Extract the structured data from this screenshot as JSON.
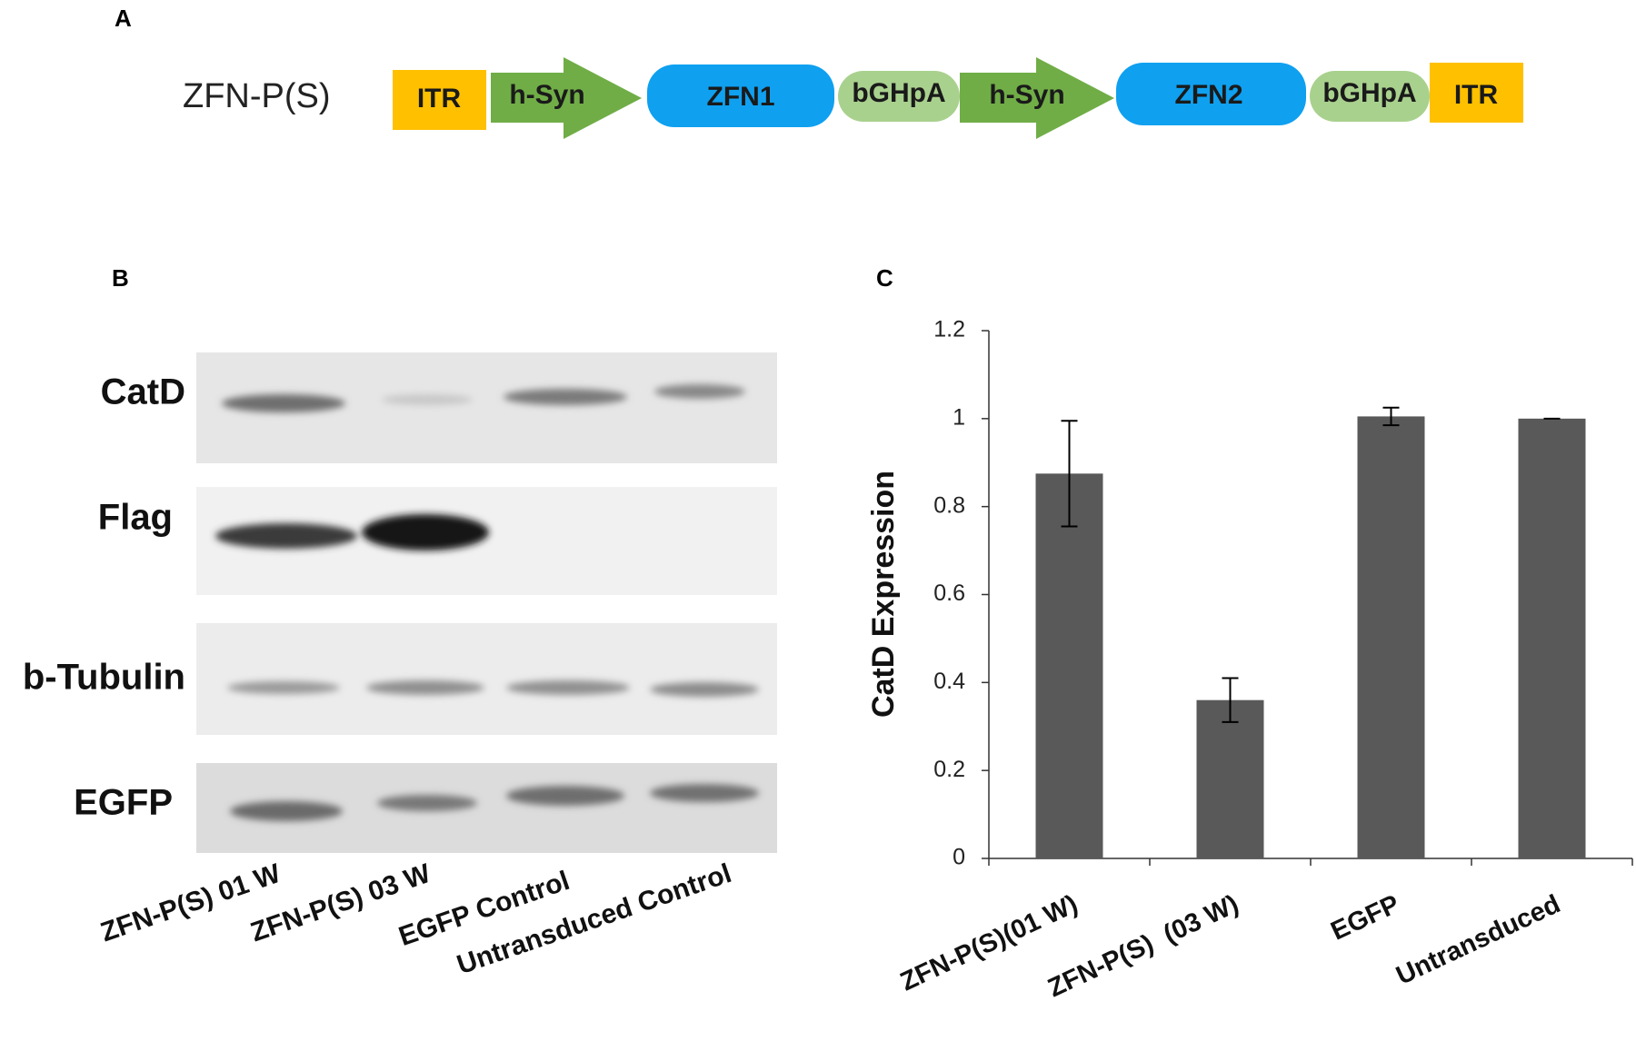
{
  "panel_a": {
    "label": "A",
    "construct": "ZFN-P(S)",
    "elements": [
      "ITR",
      "h-Syn",
      "ZFN1",
      "bGHpA",
      "h-Syn",
      "ZFN2",
      "bGHpA",
      "ITR"
    ]
  },
  "panel_b": {
    "label": "B",
    "rows": [
      "CatD",
      "Flag",
      "b-Tubulin",
      "EGFP"
    ],
    "lanes": [
      "ZFN-P(S) 01 W",
      "ZFN-P(S) 03 W",
      "EGFP Control",
      "Untransduced Control"
    ]
  },
  "panel_c": {
    "label": "C"
  },
  "chart_data": {
    "type": "bar",
    "ylabel": "CatD Expression",
    "categories": [
      "ZFN-P(S)(01 W)",
      "ZFN-P(S)  (03 W)",
      "EGFP",
      "Untransduced"
    ],
    "values": [
      0.875,
      0.36,
      1.005,
      1.0
    ],
    "errors": [
      0.12,
      0.05,
      0.02,
      0.0
    ],
    "color": "#595959",
    "ylim": [
      0,
      1.2
    ],
    "yticks": [
      0,
      0.2,
      0.4,
      0.6,
      0.8,
      1,
      1.2
    ]
  }
}
